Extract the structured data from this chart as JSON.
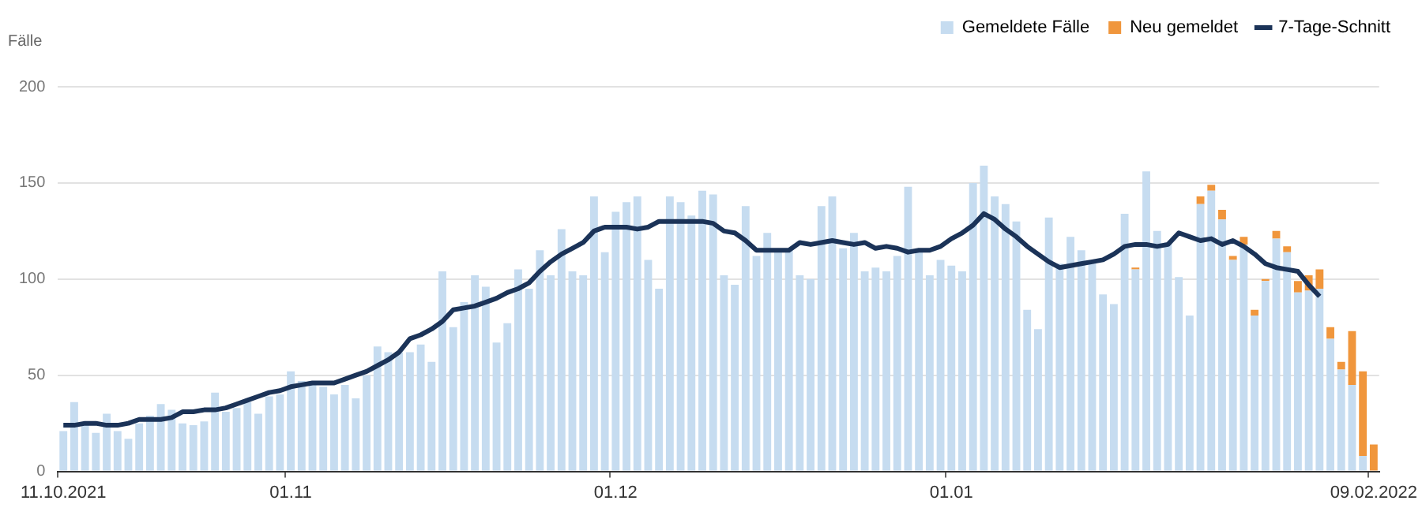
{
  "chart_data": {
    "type": "bar",
    "ylabel": "Fälle",
    "categories": [
      "11.10.2021",
      null,
      null,
      null,
      null,
      null,
      null,
      null,
      null,
      null,
      null,
      null,
      null,
      null,
      null,
      null,
      null,
      null,
      null,
      null,
      null,
      "01.11",
      null,
      null,
      null,
      null,
      null,
      null,
      null,
      null,
      null,
      null,
      null,
      null,
      null,
      null,
      null,
      null,
      null,
      null,
      null,
      null,
      null,
      null,
      null,
      null,
      null,
      null,
      null,
      null,
      null,
      "01.12",
      null,
      null,
      null,
      null,
      null,
      null,
      null,
      null,
      null,
      null,
      null,
      null,
      null,
      null,
      null,
      null,
      null,
      null,
      null,
      null,
      null,
      null,
      null,
      null,
      null,
      null,
      null,
      null,
      null,
      null,
      "01.01",
      null,
      null,
      null,
      null,
      null,
      null,
      null,
      null,
      null,
      null,
      null,
      null,
      null,
      null,
      null,
      null,
      null,
      null,
      null,
      null,
      null,
      null,
      null,
      null,
      null,
      null,
      null,
      null,
      null,
      null,
      null,
      null,
      null,
      null,
      null,
      null,
      null,
      null,
      "09.02.2022"
    ],
    "series": [
      {
        "name": "Gemeldete Fälle",
        "color": "#c6dcf0",
        "values": [
          21,
          36,
          24,
          20,
          30,
          21,
          17,
          25,
          29,
          35,
          32,
          25,
          24,
          26,
          41,
          31,
          33,
          36,
          30,
          39,
          40,
          52,
          47,
          47,
          44,
          40,
          45,
          38,
          50,
          65,
          62,
          62,
          62,
          66,
          57,
          104,
          75,
          88,
          102,
          96,
          67,
          77,
          105,
          95,
          115,
          102,
          126,
          104,
          102,
          143,
          114,
          135,
          140,
          143,
          110,
          95,
          143,
          140,
          133,
          146,
          144,
          102,
          97,
          138,
          112,
          124,
          115,
          115,
          102,
          100,
          138,
          143,
          116,
          124,
          104,
          106,
          104,
          112,
          148,
          114,
          102,
          110,
          107,
          104,
          150,
          159,
          143,
          139,
          130,
          84,
          74,
          132,
          108,
          122,
          115,
          108,
          92,
          87,
          134,
          105,
          156,
          125,
          119,
          101,
          81,
          139,
          146,
          131,
          110,
          118,
          81,
          99,
          121,
          114,
          93,
          94,
          95,
          69,
          53,
          45,
          8,
          0
        ]
      },
      {
        "name": "Neu gemeldet",
        "color": "#f0963c",
        "values": [
          null,
          null,
          null,
          null,
          null,
          null,
          null,
          null,
          null,
          null,
          null,
          null,
          null,
          null,
          null,
          null,
          null,
          null,
          null,
          null,
          null,
          null,
          null,
          null,
          null,
          null,
          null,
          null,
          null,
          null,
          null,
          null,
          null,
          null,
          null,
          null,
          null,
          null,
          null,
          null,
          null,
          null,
          null,
          null,
          null,
          null,
          null,
          null,
          null,
          null,
          null,
          null,
          null,
          null,
          null,
          null,
          null,
          null,
          null,
          null,
          null,
          null,
          null,
          null,
          null,
          null,
          null,
          null,
          null,
          null,
          null,
          null,
          null,
          null,
          null,
          null,
          null,
          null,
          null,
          null,
          null,
          null,
          null,
          null,
          null,
          null,
          null,
          null,
          null,
          null,
          null,
          null,
          null,
          null,
          null,
          null,
          null,
          null,
          null,
          1,
          null,
          null,
          null,
          null,
          null,
          4,
          3,
          5,
          2,
          4,
          3,
          1,
          4,
          3,
          6,
          8,
          10,
          6,
          4,
          28,
          44,
          14
        ]
      },
      {
        "name": "7-Tage-Schnitt",
        "type": "line",
        "color": "#1b3358",
        "values": [
          24,
          24,
          25,
          25,
          24,
          24,
          25,
          27,
          27,
          27,
          28,
          31,
          31,
          32,
          32,
          33,
          35,
          37,
          39,
          41,
          42,
          44,
          45,
          46,
          46,
          46,
          48,
          50,
          52,
          55,
          58,
          62,
          69,
          71,
          74,
          78,
          84,
          85,
          86,
          88,
          90,
          93,
          95,
          98,
          104,
          109,
          113,
          116,
          119,
          125,
          127,
          127,
          127,
          126,
          127,
          130,
          130,
          130,
          130,
          130,
          129,
          125,
          124,
          120,
          115,
          115,
          115,
          115,
          119,
          118,
          119,
          120,
          119,
          118,
          119,
          116,
          117,
          116,
          114,
          115,
          115,
          117,
          121,
          124,
          128,
          134,
          131,
          126,
          122,
          117,
          113,
          109,
          106,
          107,
          108,
          109,
          110,
          113,
          117,
          118,
          118,
          117,
          118,
          124,
          122,
          120,
          121,
          118,
          120,
          117,
          113,
          108,
          106,
          105,
          104,
          97,
          91,
          null,
          null,
          null,
          null,
          null
        ]
      }
    ],
    "stacked": true,
    "ylim": [
      0,
      200
    ],
    "yticks": [
      0,
      50,
      100,
      150,
      200
    ],
    "grid": "y",
    "legend": "top right"
  }
}
